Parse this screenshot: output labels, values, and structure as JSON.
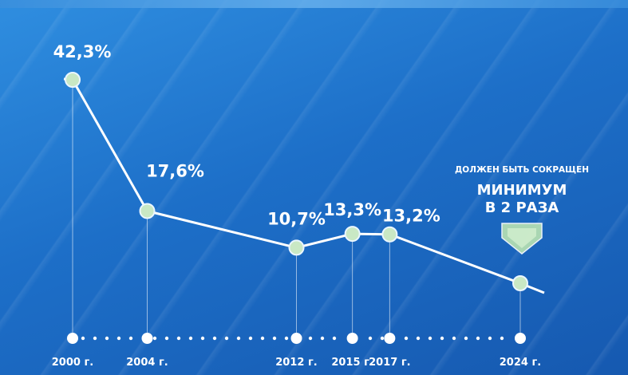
{
  "chart_data": {
    "type": "line",
    "x": [
      "2000 г.",
      "2004 г.",
      "2012 г.",
      "2015 г.",
      "2017 г.",
      "2024 г."
    ],
    "years": [
      2000,
      2004,
      2012,
      2015,
      2017,
      2024
    ],
    "values": [
      42.3,
      17.6,
      10.7,
      13.3,
      13.2,
      null
    ],
    "value_labels": [
      "42,3%",
      "17,6%",
      "10,7%",
      "13,3%",
      "13,2%",
      ""
    ],
    "ylim": [
      0,
      45
    ],
    "grid": false,
    "annotation": {
      "small": "ДОЛЖЕН БЫТЬ СОКРАЩЕН",
      "big_line1": "МИНИМУМ",
      "big_line2": "В 2 РАЗА"
    }
  },
  "colors": {
    "line": "#ffffff",
    "point_fill": "#c9e8c4",
    "point_stroke": "#eaf6ff",
    "axis_dot": "#ffffff",
    "marker": "#b9e3b2"
  }
}
